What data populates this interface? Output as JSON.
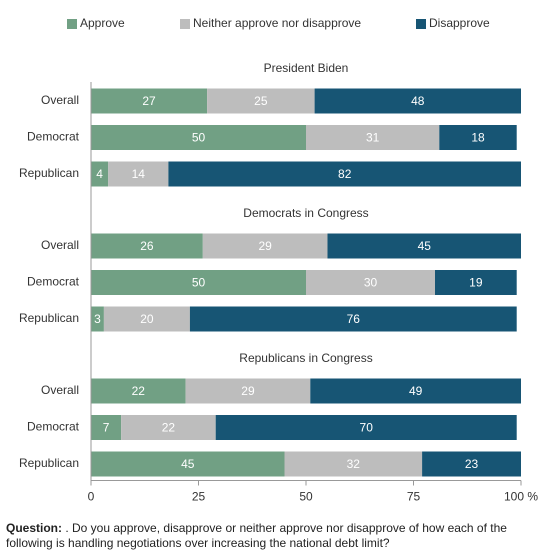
{
  "chart_data": [
    {
      "type": "stacked-bar",
      "title": "President Biden",
      "categories": [
        "Overall",
        "Democrat",
        "Republican"
      ],
      "series": [
        {
          "name": "Approve",
          "color": "#71a084",
          "values": [
            27,
            50,
            4
          ]
        },
        {
          "name": "Neither approve nor disapprove",
          "color": "#bdbdbd",
          "values": [
            25,
            31,
            14
          ]
        },
        {
          "name": "Disapprove",
          "color": "#175574",
          "values": [
            48,
            18,
            82
          ]
        }
      ],
      "xlim": [
        0,
        100
      ]
    },
    {
      "type": "stacked-bar",
      "title": "Democrats in Congress",
      "categories": [
        "Overall",
        "Democrat",
        "Republican"
      ],
      "series": [
        {
          "name": "Approve",
          "color": "#71a084",
          "values": [
            26,
            50,
            3
          ]
        },
        {
          "name": "Neither approve nor disapprove",
          "color": "#bdbdbd",
          "values": [
            29,
            30,
            20
          ]
        },
        {
          "name": "Disapprove",
          "color": "#175574",
          "values": [
            45,
            19,
            76
          ]
        }
      ],
      "xlim": [
        0,
        100
      ]
    },
    {
      "type": "stacked-bar",
      "title": "Republicans in Congress",
      "categories": [
        "Overall",
        "Democrat",
        "Republican"
      ],
      "series": [
        {
          "name": "Approve",
          "color": "#71a084",
          "values": [
            22,
            7,
            45
          ]
        },
        {
          "name": "Neither approve nor disapprove",
          "color": "#bdbdbd",
          "values": [
            29,
            22,
            32
          ]
        },
        {
          "name": "Disapprove",
          "color": "#175574",
          "values": [
            49,
            70,
            23
          ]
        }
      ],
      "xlim": [
        0,
        100
      ],
      "xticks": [
        0,
        25,
        50,
        75,
        {
          "value": 100,
          "label": "100 %"
        }
      ]
    }
  ],
  "footnote": {
    "label": "Question:",
    "text": ". Do you approve, disapprove or neither approve nor disapprove of how each of the following is handling negotiations over increasing the national debt limit?"
  }
}
